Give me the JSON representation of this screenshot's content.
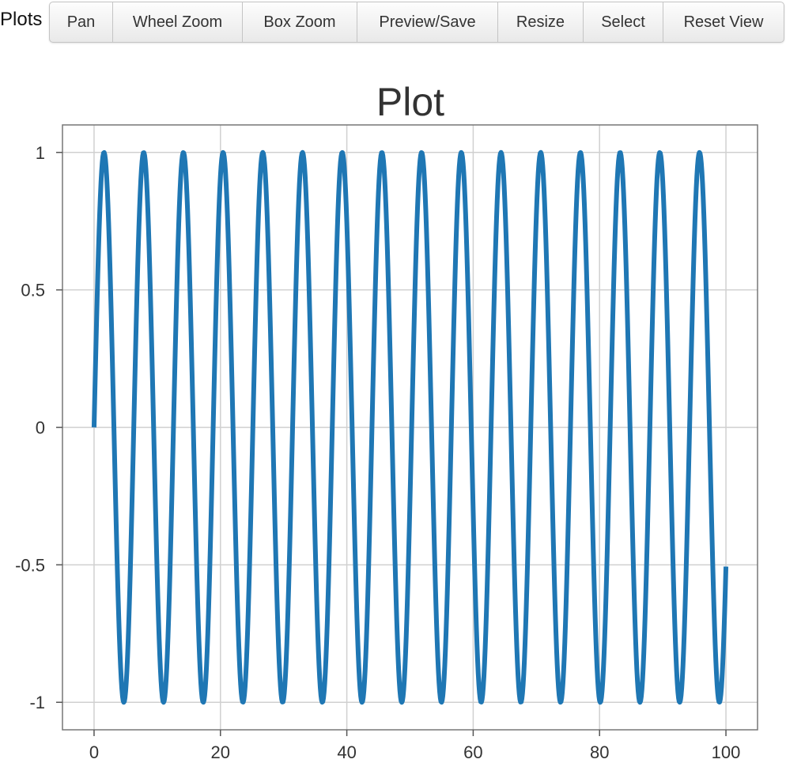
{
  "header": {
    "label": "Plots"
  },
  "toolbar": {
    "buttons": [
      {
        "name": "pan-button",
        "label": "Pan"
      },
      {
        "name": "wheel-zoom-button",
        "label": "Wheel Zoom"
      },
      {
        "name": "box-zoom-button",
        "label": "Box Zoom"
      },
      {
        "name": "preview-save-button",
        "label": "Preview/Save"
      },
      {
        "name": "resize-button",
        "label": "Resize"
      },
      {
        "name": "select-button",
        "label": "Select"
      },
      {
        "name": "reset-view-button",
        "label": "Reset View"
      }
    ]
  },
  "chart_data": {
    "type": "line",
    "title": "Plot",
    "xlabel": "",
    "ylabel": "",
    "xlim": [
      -5,
      105
    ],
    "ylim": [
      -1.1,
      1.1
    ],
    "x_ticks": [
      0,
      20,
      40,
      60,
      80,
      100
    ],
    "y_ticks": [
      1,
      0.5,
      0,
      -0.5,
      -1
    ],
    "y_tick_labels": [
      "1",
      "0.5",
      "0",
      "-0.5",
      "-1"
    ],
    "grid": true,
    "line_color": "#1f77b4",
    "series": [
      {
        "function": "sin",
        "x_range": [
          0,
          100
        ],
        "samples": 1000
      }
    ]
  }
}
